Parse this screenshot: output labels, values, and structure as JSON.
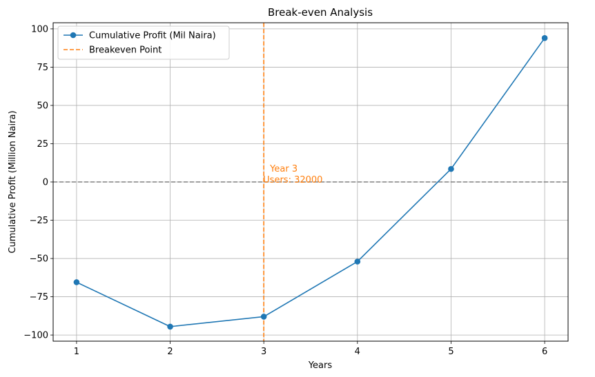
{
  "chart_data": {
    "type": "line",
    "title": "Break-even Analysis",
    "xlabel": "Years",
    "ylabel": "Cumulative Profit (Million Naira)",
    "xlim": [
      0.75,
      6.25
    ],
    "ylim": [
      -104,
      104
    ],
    "x_ticks": [
      1,
      2,
      3,
      4,
      5,
      6
    ],
    "y_ticks": [
      -100,
      -75,
      -50,
      -25,
      0,
      25,
      50,
      75,
      100
    ],
    "x_tick_labels": [
      "1",
      "2",
      "3",
      "4",
      "5",
      "6"
    ],
    "y_tick_labels": [
      "−100",
      "−75",
      "−50",
      "−25",
      "0",
      "25",
      "50",
      "75",
      "100"
    ],
    "grid": true,
    "legend_position": "top-left",
    "series": [
      {
        "name": "Cumulative Profit (Mil Naira)",
        "color": "#1f77b4",
        "marker": "circle",
        "x": [
          1,
          2,
          3,
          4,
          5,
          6
        ],
        "y": [
          -65.5,
          -94.5,
          -88,
          -52,
          8.5,
          94
        ]
      }
    ],
    "reference_lines": [
      {
        "name": "Breakeven Point",
        "orientation": "vertical",
        "x": 3,
        "color": "#ff7f0e",
        "style": "dashed"
      },
      {
        "orientation": "horizontal",
        "y": 0,
        "color": "#808080",
        "style": "dashed"
      }
    ],
    "annotation": {
      "lines": [
        "Year 3",
        "Users: 32000"
      ],
      "x": 3,
      "y": 0,
      "color": "#ff7f0e"
    }
  }
}
